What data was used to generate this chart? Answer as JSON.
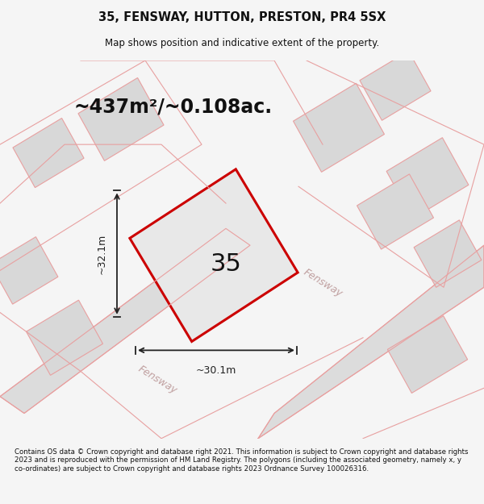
{
  "title_line1": "35, FENSWAY, HUTTON, PRESTON, PR4 5SX",
  "title_line2": "Map shows position and indicative extent of the property.",
  "area_text": "~437m²/~0.108ac.",
  "plot_number": "35",
  "width_label": "~30.1m",
  "height_label": "~32.1m",
  "footer_text": "Contains OS data © Crown copyright and database right 2021. This information is subject to Crown copyright and database rights 2023 and is reproduced with the permission of HM Land Registry. The polygons (including the associated geometry, namely x, y co-ordinates) are subject to Crown copyright and database rights 2023 Ordnance Survey 100026316.",
  "bg_color": "#f5f5f5",
  "map_bg": "#ffffff",
  "plot_fill": "#e8e8e8",
  "plot_edge": "#cc0000",
  "road_fill": "#d4d4d4",
  "road_stroke": "#e88080",
  "other_plot_fill": "#d8d8d8",
  "other_plot_stroke": "#e88080",
  "dim_color": "#222222",
  "text_color": "#111111",
  "road_label_color": "#c0a0a0"
}
